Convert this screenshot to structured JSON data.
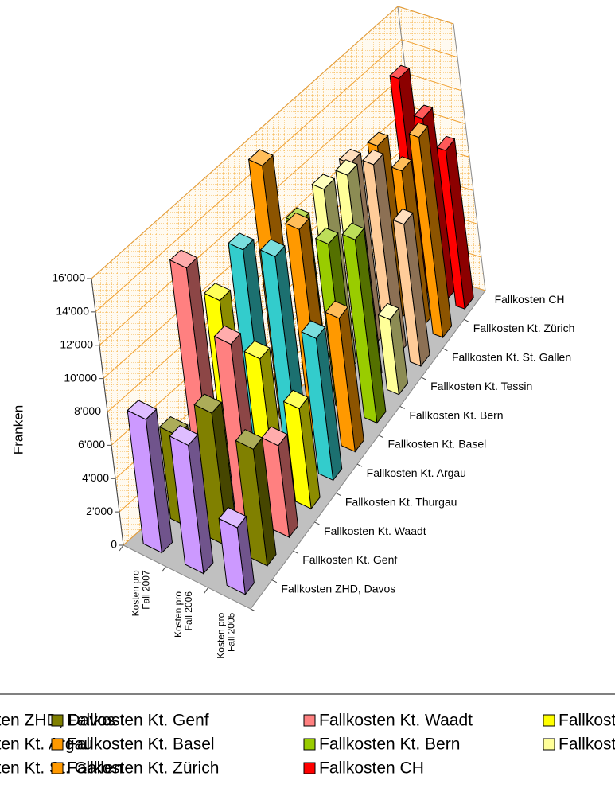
{
  "chart_data": {
    "type": "bar3d",
    "ylabel": "Franken",
    "categories": [
      "Kosten pro Fall 2007",
      "Kosten pro Fall 2006",
      "Kosten pro Fall 2005"
    ],
    "series": [
      {
        "name": "Fallkosten ZHD, Davos",
        "color": "#cc99ff",
        "values": [
          8000,
          7700,
          4000
        ]
      },
      {
        "name": "Fallkosten Kt. Genf",
        "color": "#808000",
        "values": [
          5500,
          8000,
          7000
        ]
      },
      {
        "name": "Fallkosten Kt. Waadt",
        "color": "#ff8080",
        "values": [
          14000,
          10500,
          5500
        ]
      },
      {
        "name": "Fallkosten Kt. Thurgau",
        "color": "#ffff00",
        "values": [
          10500,
          8000,
          6000
        ]
      },
      {
        "name": "Fallkosten Kt. Argau",
        "color": "#33cccc",
        "values": [
          12000,
          12500,
          8500
        ]
      },
      {
        "name": "Fallkosten Kt. Basel",
        "color": "#ff9900",
        "values": [
          15500,
          12500,
          8000
        ]
      },
      {
        "name": "Fallkosten Kt. Bern",
        "color": "#99cc00",
        "values": [
          10500,
          10000,
          11000
        ]
      },
      {
        "name": "Fallkosten Kt. Tessin",
        "color": "#ffff99",
        "values": [
          11000,
          12500,
          4500
        ]
      },
      {
        "name": "Fallkosten Kt. St. Gallen",
        "color": "#ffcc99",
        "values": [
          11000,
          11500,
          8500
        ]
      },
      {
        "name": "Fallkosten Kt. Zürich",
        "color": "#ff9900",
        "values": [
          10500,
          9500,
          12000
        ]
      },
      {
        "name": "Fallkosten CH",
        "color": "#ff0000",
        "values": [
          13000,
          11000,
          9500
        ]
      }
    ],
    "ylim": [
      0,
      16000
    ],
    "yticks": [
      0,
      {
        "value": 2000,
        "label": "2'000"
      },
      {
        "value": 4000,
        "label": "4'000"
      },
      {
        "value": 6000,
        "label": "6'000"
      },
      {
        "value": 8000,
        "label": "8'000"
      },
      {
        "value": 10000,
        "label": "10'000"
      },
      {
        "value": 12000,
        "label": "12'000"
      },
      {
        "value": 14000,
        "label": "14'000"
      },
      {
        "value": 16000,
        "label": "16'000"
      }
    ],
    "grid": true
  }
}
